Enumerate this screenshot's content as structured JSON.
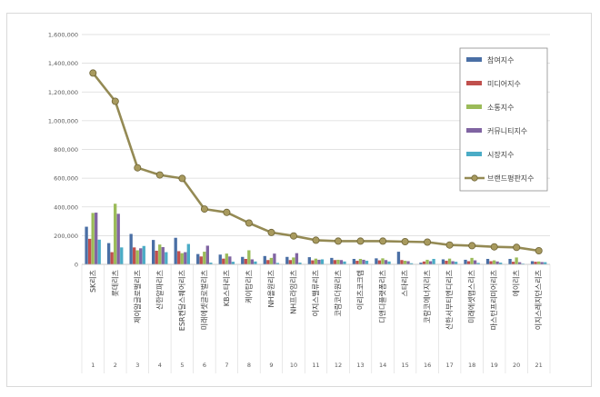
{
  "chart_data": {
    "type": "bar",
    "title": "",
    "xlabel": "",
    "ylabel": "",
    "ylim": [
      0,
      1600000
    ],
    "yticks": [
      "0",
      "200,000",
      "400,000",
      "600,000",
      "800,000",
      "1,000,000",
      "1,200,000",
      "1,400,000",
      "1,600,000"
    ],
    "grid": true,
    "legend_position": "right",
    "categories": [
      "SK리츠",
      "롯데리츠",
      "제이알글로벌리츠",
      "신한알파리츠",
      "ESR켄달스퀘어리츠",
      "미래에셋글로벌리츠",
      "KB스타리츠",
      "케이탑리츠",
      "NH올원리츠",
      "NH프라임리츠",
      "이지스밸류리츠",
      "코람코더원리츠",
      "이리츠코크렙",
      "디앤디플랫폼리츠",
      "스타리츠",
      "코람코에너지리츠",
      "신한서부티엔디리츠",
      "미래에셋맵스리츠",
      "마스턴프리미어리츠",
      "에이리츠",
      "이지스레지던스리츠"
    ],
    "ranks": [
      "1",
      "2",
      "3",
      "4",
      "5",
      "6",
      "7",
      "8",
      "9",
      "10",
      "11",
      "12",
      "13",
      "14",
      "15",
      "16",
      "17",
      "18",
      "19",
      "20",
      "21"
    ],
    "series": [
      {
        "name": "참여지수",
        "type": "bar",
        "color": "#4a6fa5",
        "values": [
          262000,
          148000,
          212000,
          170000,
          185000,
          72000,
          68000,
          52000,
          58000,
          52000,
          50000,
          45000,
          38000,
          42000,
          88000,
          12000,
          35000,
          32000,
          38000,
          38000,
          22000
        ]
      },
      {
        "name": "미디어지수",
        "type": "bar",
        "color": "#c0504d",
        "values": [
          178000,
          85000,
          118000,
          95000,
          92000,
          55000,
          40000,
          38000,
          30000,
          30000,
          28000,
          30000,
          25000,
          28000,
          30000,
          20000,
          25000,
          22000,
          22000,
          18000,
          18000
        ]
      },
      {
        "name": "소통지수",
        "type": "bar",
        "color": "#9bbb59",
        "values": [
          358000,
          422000,
          98000,
          138000,
          78000,
          88000,
          75000,
          98000,
          45000,
          48000,
          40000,
          32000,
          38000,
          42000,
          25000,
          32000,
          40000,
          45000,
          28000,
          48000,
          20000
        ]
      },
      {
        "name": "커뮤니티지수",
        "type": "bar",
        "color": "#8064a2",
        "values": [
          360000,
          352000,
          112000,
          120000,
          85000,
          130000,
          55000,
          35000,
          75000,
          78000,
          32000,
          30000,
          32000,
          30000,
          22000,
          22000,
          22000,
          28000,
          20000,
          15000,
          16000
        ]
      },
      {
        "name": "시장지수",
        "type": "bar",
        "color": "#4bacc6",
        "values": [
          172000,
          118000,
          128000,
          85000,
          142000,
          12000,
          18000,
          20000,
          10000,
          12000,
          35000,
          20000,
          25000,
          20000,
          8000,
          38000,
          18000,
          10000,
          12000,
          5000,
          15000
        ]
      },
      {
        "name": "브랜드평판지수",
        "type": "line",
        "color": "#948a54",
        "values": [
          1332000,
          1135000,
          672000,
          622000,
          598000,
          385000,
          362000,
          288000,
          222000,
          198000,
          168000,
          162000,
          162000,
          162000,
          158000,
          155000,
          135000,
          130000,
          122000,
          118000,
          95000
        ]
      }
    ]
  }
}
